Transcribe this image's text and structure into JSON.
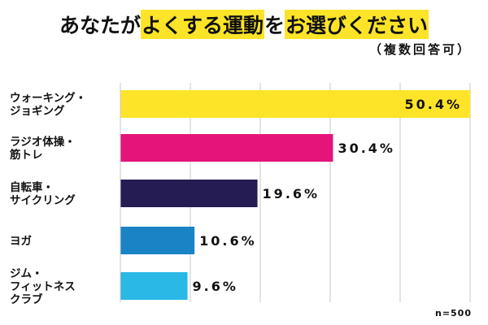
{
  "title": {
    "pre": "あなたが",
    "highlight1": "よくする運動",
    "mid": "を",
    "highlight2": "お選びください"
  },
  "subtitle": "（複数回答可）",
  "note": "n=500",
  "colors": {
    "title_highlight": "#fde428",
    "grid": "#c8c8c8"
  },
  "chart_data": {
    "type": "bar",
    "orientation": "horizontal",
    "categories": [
      [
        "ウォーキング・",
        "ジョギング"
      ],
      [
        "ラジオ体操・",
        "筋トレ"
      ],
      [
        "自転車・",
        "サイクリング"
      ],
      [
        "ヨガ"
      ],
      [
        "ジム・",
        "フィットネス",
        "クラブ"
      ]
    ],
    "values": [
      50.4,
      30.4,
      19.6,
      10.6,
      9.6
    ],
    "value_labels": [
      "50.4%",
      "30.4%",
      "19.6%",
      "10.6%",
      "9.6%"
    ],
    "bar_colors": [
      "#fde428",
      "#e4147a",
      "#241c52",
      "#1a83c6",
      "#2ab8e6"
    ],
    "xlim": [
      0,
      50
    ],
    "grid": true
  }
}
